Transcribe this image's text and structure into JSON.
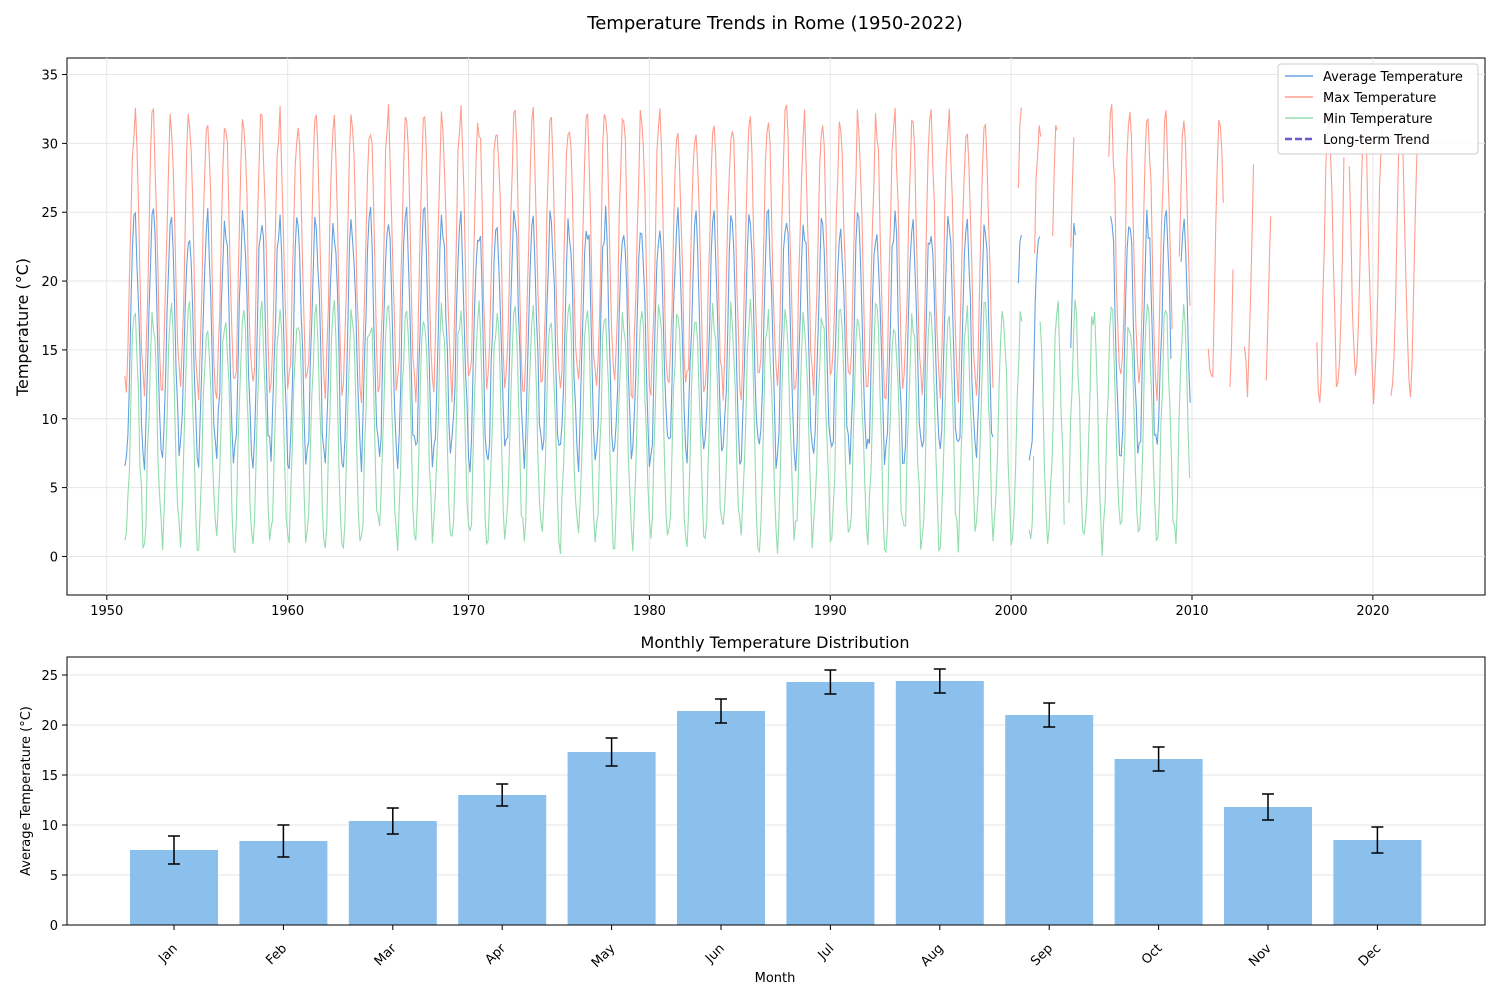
{
  "title": "Temperature Trends in Rome (1950-2022)",
  "chart_data": [
    {
      "type": "line",
      "title": "",
      "xlabel": "",
      "ylabel": "Temperature (°C)",
      "xlim": [
        1947.8,
        2026.2
      ],
      "ylim": [
        -2.8,
        36.2
      ],
      "xticks": [
        1950,
        1960,
        1970,
        1980,
        1990,
        2000,
        2010,
        2020
      ],
      "yticks": [
        0,
        5,
        10,
        15,
        20,
        25,
        30,
        35
      ],
      "grid": true,
      "legend_position": "top-right",
      "colors": {
        "avg": "#4a90d9",
        "max": "#ff8c7a",
        "min": "#7fd6a0",
        "trend": "#6a5acd"
      },
      "series": [
        {
          "name": "Average Temperature",
          "style": "line",
          "key": "avg",
          "mean": 15.8,
          "amplitude": 8.6,
          "segments": [
            [
              1951.0,
              1999.0
            ],
            [
              2000.4,
              2000.6
            ],
            [
              2001.0,
              2001.6
            ],
            [
              2003.3,
              2003.6
            ],
            [
              2005.5,
              2008.9
            ],
            [
              2009.4,
              2009.9
            ]
          ]
        },
        {
          "name": "Max Temperature",
          "style": "line",
          "key": "max",
          "mean": 22.0,
          "amplitude": 9.8,
          "segments": [
            [
              1951.0,
              1999.0
            ],
            [
              2000.4,
              2000.6
            ],
            [
              2001.3,
              2001.7
            ],
            [
              2002.3,
              2002.6
            ],
            [
              2003.3,
              2003.5
            ],
            [
              2005.4,
              2008.9
            ],
            [
              2009.3,
              2009.9
            ],
            [
              2010.9,
              2011.8
            ],
            [
              2012.1,
              2012.3
            ],
            [
              2012.9,
              2013.4
            ],
            [
              2014.1,
              2014.4
            ],
            [
              2016.9,
              2018.4
            ],
            [
              2018.7,
              2020.6
            ],
            [
              2021.0,
              2022.6
            ]
          ]
        },
        {
          "name": "Min Temperature",
          "style": "line",
          "key": "min",
          "mean": 9.5,
          "amplitude": 8.2,
          "segments": [
            [
              1951.0,
              2000.6
            ],
            [
              2001.0,
              2001.3
            ],
            [
              2001.6,
              2003.0
            ],
            [
              2003.2,
              2009.9
            ]
          ]
        },
        {
          "name": "Long-term Trend",
          "style": "dashed",
          "key": "trend",
          "points": []
        }
      ]
    },
    {
      "type": "bar",
      "title": "Monthly Temperature Distribution",
      "xlabel": "Month",
      "ylabel": "Average Temperature (°C)",
      "categories": [
        "Jan",
        "Feb",
        "Mar",
        "Apr",
        "May",
        "Jun",
        "Jul",
        "Aug",
        "Sep",
        "Oct",
        "Nov",
        "Dec"
      ],
      "values": [
        7.5,
        8.4,
        10.4,
        13.0,
        17.3,
        21.4,
        24.3,
        24.4,
        21.0,
        16.6,
        11.8,
        8.5
      ],
      "errors": [
        1.4,
        1.6,
        1.3,
        1.1,
        1.4,
        1.2,
        1.2,
        1.2,
        1.2,
        1.2,
        1.3,
        1.3
      ],
      "yticks": [
        0,
        5,
        10,
        15,
        20,
        25
      ],
      "ylim": [
        0,
        26.8
      ],
      "grid": true,
      "bar_color": "#8bbfec"
    }
  ]
}
